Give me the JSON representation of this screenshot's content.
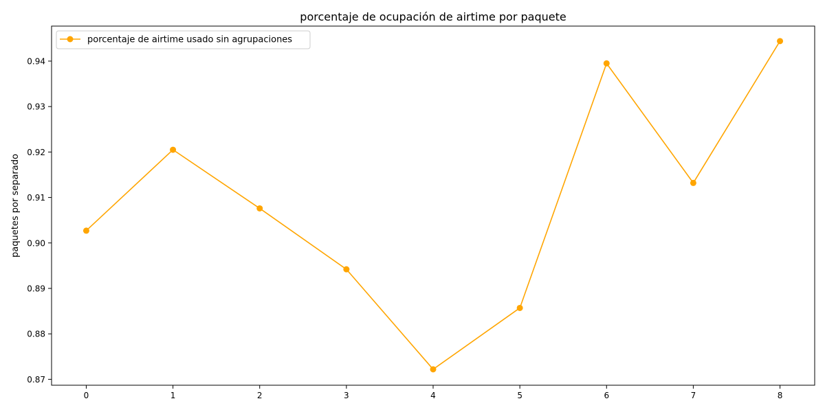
{
  "chart_data": {
    "type": "line",
    "title": "porcentaje de ocupación de airtime por paquete",
    "xlabel": "",
    "ylabel": "paquetes por separado",
    "xlim": [
      -0.4,
      8.4
    ],
    "ylim": [
      0.8687,
      0.9477
    ],
    "x_ticks": [
      "0",
      "1",
      "2",
      "3",
      "4",
      "5",
      "6",
      "7",
      "8"
    ],
    "y_ticks": [
      "0.87",
      "0.88",
      "0.89",
      "0.90",
      "0.91",
      "0.92",
      "0.93",
      "0.94"
    ],
    "grid": false,
    "legend_position": "top-left",
    "series": [
      {
        "name": "porcentaje de airtime usado sin agrupaciones",
        "color": "#FFA500",
        "marker": "circle",
        "x": [
          0,
          1,
          2,
          3,
          4,
          5,
          6,
          7,
          8
        ],
        "y": [
          0.9027,
          0.9205,
          0.9076,
          0.8942,
          0.8722,
          0.8857,
          0.9395,
          0.9132,
          0.9444
        ]
      }
    ]
  }
}
